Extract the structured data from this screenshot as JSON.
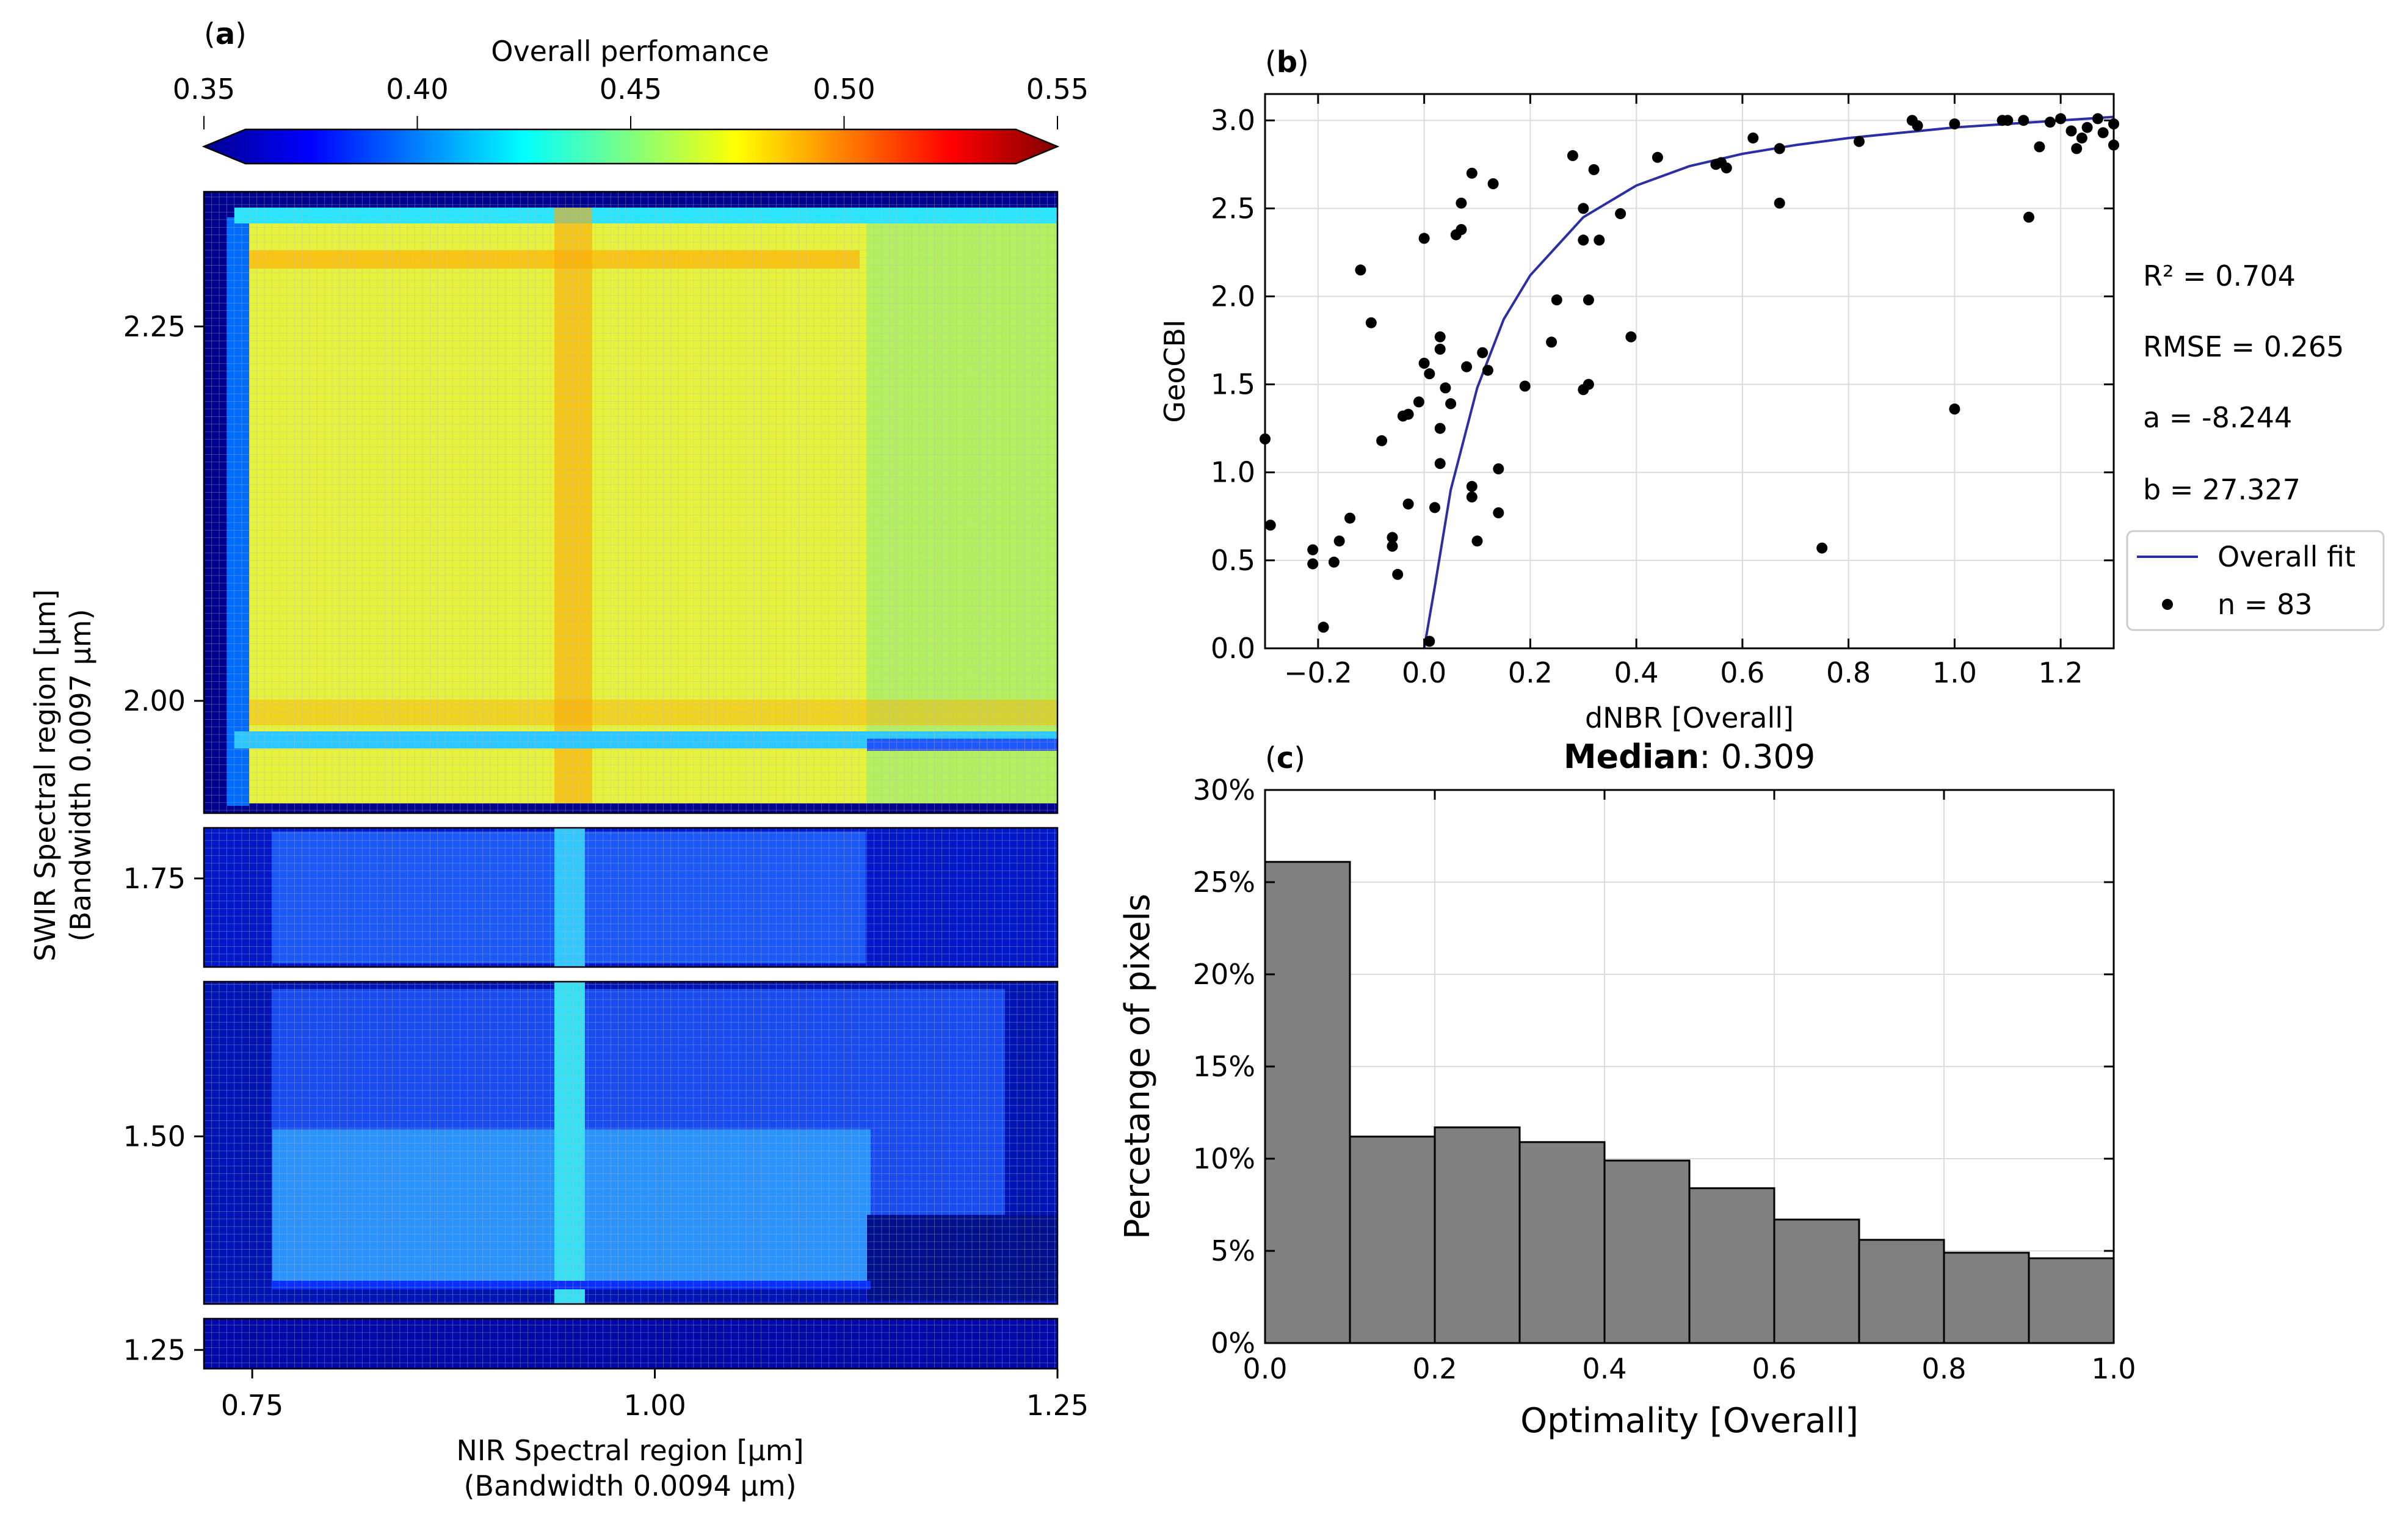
{
  "colors": {
    "axis": "#000000",
    "grid": "#dcdcdc",
    "fit_line": "#2b2fa6",
    "points": "#000000",
    "bars": "#808080",
    "bar_edge": "#000000"
  },
  "panel_a": {
    "label_pre": "(",
    "label_letter": "a",
    "label_post": ")",
    "colorbar_title": "Overall perfomance",
    "colorbar_ticks": [
      "0.35",
      "0.40",
      "0.45",
      "0.50",
      "0.55"
    ],
    "ylabel_line1": "SWIR Spectral region [µm]",
    "ylabel_line2": "(Bandwidth 0.0097 µm)",
    "xlabel_line1": "NIR Spectral region [µm]",
    "xlabel_line2": "(Bandwidth 0.0094 µm)",
    "ytick_labels": [
      "2.25",
      "2.00",
      "1.75",
      "1.50",
      "1.25"
    ],
    "xtick_labels": [
      "0.75",
      "1.00",
      "1.25"
    ]
  },
  "panel_b": {
    "label_pre": "(",
    "label_letter": "b",
    "label_post": ")",
    "ylabel": "GeoCBI",
    "xlabel": "dNBR [Overall]",
    "stats": [
      "R² = 0.704",
      "RMSE = 0.265",
      "a = -8.244",
      "b = 27.327"
    ],
    "legend_fit": "Overall fit",
    "legend_points": "n = 83",
    "xtick_labels": [
      "−0.2",
      "0.0",
      "0.2",
      "0.4",
      "0.6",
      "0.8",
      "1.0",
      "1.2"
    ],
    "ytick_labels": [
      "0.0",
      "0.5",
      "1.0",
      "1.5",
      "2.0",
      "2.5",
      "3.0"
    ]
  },
  "panel_c": {
    "label_pre": "(",
    "label_letter": "c",
    "label_post": ")",
    "title_bold": "Median",
    "title_rest": ": 0.309",
    "ylabel": "Percetange of pixels",
    "xlabel": "Optimality [Overall]",
    "xtick_labels": [
      "0.0",
      "0.2",
      "0.4",
      "0.6",
      "0.8",
      "1.0"
    ],
    "ytick_labels": [
      "0%",
      "5%",
      "10%",
      "15%",
      "20%",
      "25%",
      "30%"
    ]
  },
  "chart_data": [
    {
      "type": "heatmap",
      "title": "Overall perfomance",
      "colorbar_range": [
        0.35,
        0.55
      ],
      "colormap": "jet",
      "xlabel": "NIR Spectral region [µm] (Bandwidth 0.0094 µm)",
      "ylabel": "SWIR Spectral region [µm] (Bandwidth 0.0097 µm)",
      "xlim": [
        0.72,
        1.25
      ],
      "segments": [
        {
          "ylim": [
            1.925,
            2.34
          ],
          "approx_value_range": [
            0.4,
            0.5
          ]
        },
        {
          "ylim": [
            1.68,
            1.79
          ],
          "approx_value_range": [
            0.36,
            0.41
          ]
        },
        {
          "ylim": [
            1.37,
            1.62
          ],
          "approx_value_range": [
            0.35,
            0.42
          ]
        },
        {
          "ylim": [
            1.235,
            1.275
          ],
          "approx_value_range": [
            0.35,
            0.36
          ]
        }
      ],
      "notable_features": [
        "high-performance column near NIR 0.95 µm",
        "high-performance row near SWIR 2.39 µm",
        "low-performance row near SWIR 2.00 µm"
      ]
    },
    {
      "type": "scatter",
      "xlabel": "dNBR [Overall]",
      "ylabel": "GeoCBI",
      "xlim": [
        -0.3,
        1.3
      ],
      "ylim": [
        0,
        3.15
      ],
      "fit": {
        "name": "Overall fit",
        "a": -8.244,
        "b": 27.327,
        "r2": 0.704,
        "rmse": 0.265,
        "x": [
          0.0,
          0.02,
          0.05,
          0.1,
          0.15,
          0.2,
          0.3,
          0.4,
          0.5,
          0.6,
          0.7,
          0.8,
          0.9,
          1.0,
          1.1,
          1.2,
          1.3
        ],
        "y": [
          0.0,
          0.35,
          0.9,
          1.48,
          1.87,
          2.12,
          2.45,
          2.63,
          2.74,
          2.81,
          2.86,
          2.9,
          2.93,
          2.96,
          2.98,
          3.0,
          3.02
        ]
      },
      "series": [
        {
          "name": "n = 83",
          "points": [
            [
              -0.3,
              1.19
            ],
            [
              -0.29,
              0.7
            ],
            [
              -0.21,
              0.56
            ],
            [
              -0.21,
              0.48
            ],
            [
              -0.19,
              0.12
            ],
            [
              -0.17,
              0.49
            ],
            [
              -0.16,
              0.61
            ],
            [
              -0.14,
              0.74
            ],
            [
              -0.12,
              2.15
            ],
            [
              -0.1,
              1.85
            ],
            [
              -0.08,
              1.18
            ],
            [
              -0.06,
              0.63
            ],
            [
              -0.06,
              0.58
            ],
            [
              -0.05,
              0.42
            ],
            [
              -0.04,
              1.32
            ],
            [
              -0.03,
              1.33
            ],
            [
              -0.03,
              0.82
            ],
            [
              -0.01,
              1.4
            ],
            [
              0.0,
              2.33
            ],
            [
              0.0,
              1.62
            ],
            [
              0.01,
              1.56
            ],
            [
              0.01,
              0.04
            ],
            [
              0.02,
              0.8
            ],
            [
              0.03,
              1.77
            ],
            [
              0.03,
              1.7
            ],
            [
              0.03,
              1.25
            ],
            [
              0.03,
              1.05
            ],
            [
              0.04,
              1.48
            ],
            [
              0.05,
              1.39
            ],
            [
              0.06,
              2.35
            ],
            [
              0.07,
              2.38
            ],
            [
              0.07,
              2.53
            ],
            [
              0.08,
              1.6
            ],
            [
              0.09,
              0.86
            ],
            [
              0.09,
              0.92
            ],
            [
              0.09,
              2.7
            ],
            [
              0.1,
              0.61
            ],
            [
              0.11,
              1.68
            ],
            [
              0.12,
              1.58
            ],
            [
              0.13,
              2.64
            ],
            [
              0.14,
              1.02
            ],
            [
              0.14,
              0.77
            ],
            [
              0.19,
              1.49
            ],
            [
              0.24,
              1.74
            ],
            [
              0.25,
              1.98
            ],
            [
              0.28,
              2.8
            ],
            [
              0.3,
              2.32
            ],
            [
              0.3,
              2.5
            ],
            [
              0.3,
              1.47
            ],
            [
              0.31,
              1.98
            ],
            [
              0.31,
              1.5
            ],
            [
              0.32,
              2.72
            ],
            [
              0.33,
              2.32
            ],
            [
              0.37,
              2.47
            ],
            [
              0.39,
              1.77
            ],
            [
              0.44,
              2.79
            ],
            [
              0.55,
              2.75
            ],
            [
              0.56,
              2.76
            ],
            [
              0.57,
              2.73
            ],
            [
              0.62,
              2.9
            ],
            [
              0.67,
              2.84
            ],
            [
              0.67,
              2.53
            ],
            [
              0.75,
              0.57
            ],
            [
              0.82,
              2.88
            ],
            [
              0.92,
              3.0
            ],
            [
              0.93,
              2.97
            ],
            [
              1.0,
              2.98
            ],
            [
              1.0,
              1.36
            ],
            [
              1.09,
              3.0
            ],
            [
              1.1,
              3.0
            ],
            [
              1.13,
              3.0
            ],
            [
              1.14,
              2.45
            ],
            [
              1.16,
              2.85
            ],
            [
              1.18,
              2.99
            ],
            [
              1.2,
              3.01
            ],
            [
              1.22,
              2.94
            ],
            [
              1.23,
              2.84
            ],
            [
              1.24,
              2.9
            ],
            [
              1.25,
              2.96
            ],
            [
              1.27,
              3.01
            ],
            [
              1.28,
              2.93
            ],
            [
              1.3,
              2.98
            ],
            [
              1.3,
              2.86
            ]
          ]
        }
      ]
    },
    {
      "type": "bar",
      "title": "Median: 0.309",
      "xlabel": "Optimality [Overall]",
      "ylabel": "Percetange of pixels",
      "bin_edges": [
        0.0,
        0.1,
        0.2,
        0.3,
        0.4,
        0.5,
        0.6,
        0.7,
        0.8,
        0.9,
        1.0
      ],
      "values": [
        26.1,
        11.2,
        11.7,
        10.9,
        9.9,
        8.4,
        6.7,
        5.6,
        4.9,
        4.6
      ],
      "ylim": [
        0,
        30
      ],
      "xlim": [
        0,
        1
      ]
    }
  ]
}
